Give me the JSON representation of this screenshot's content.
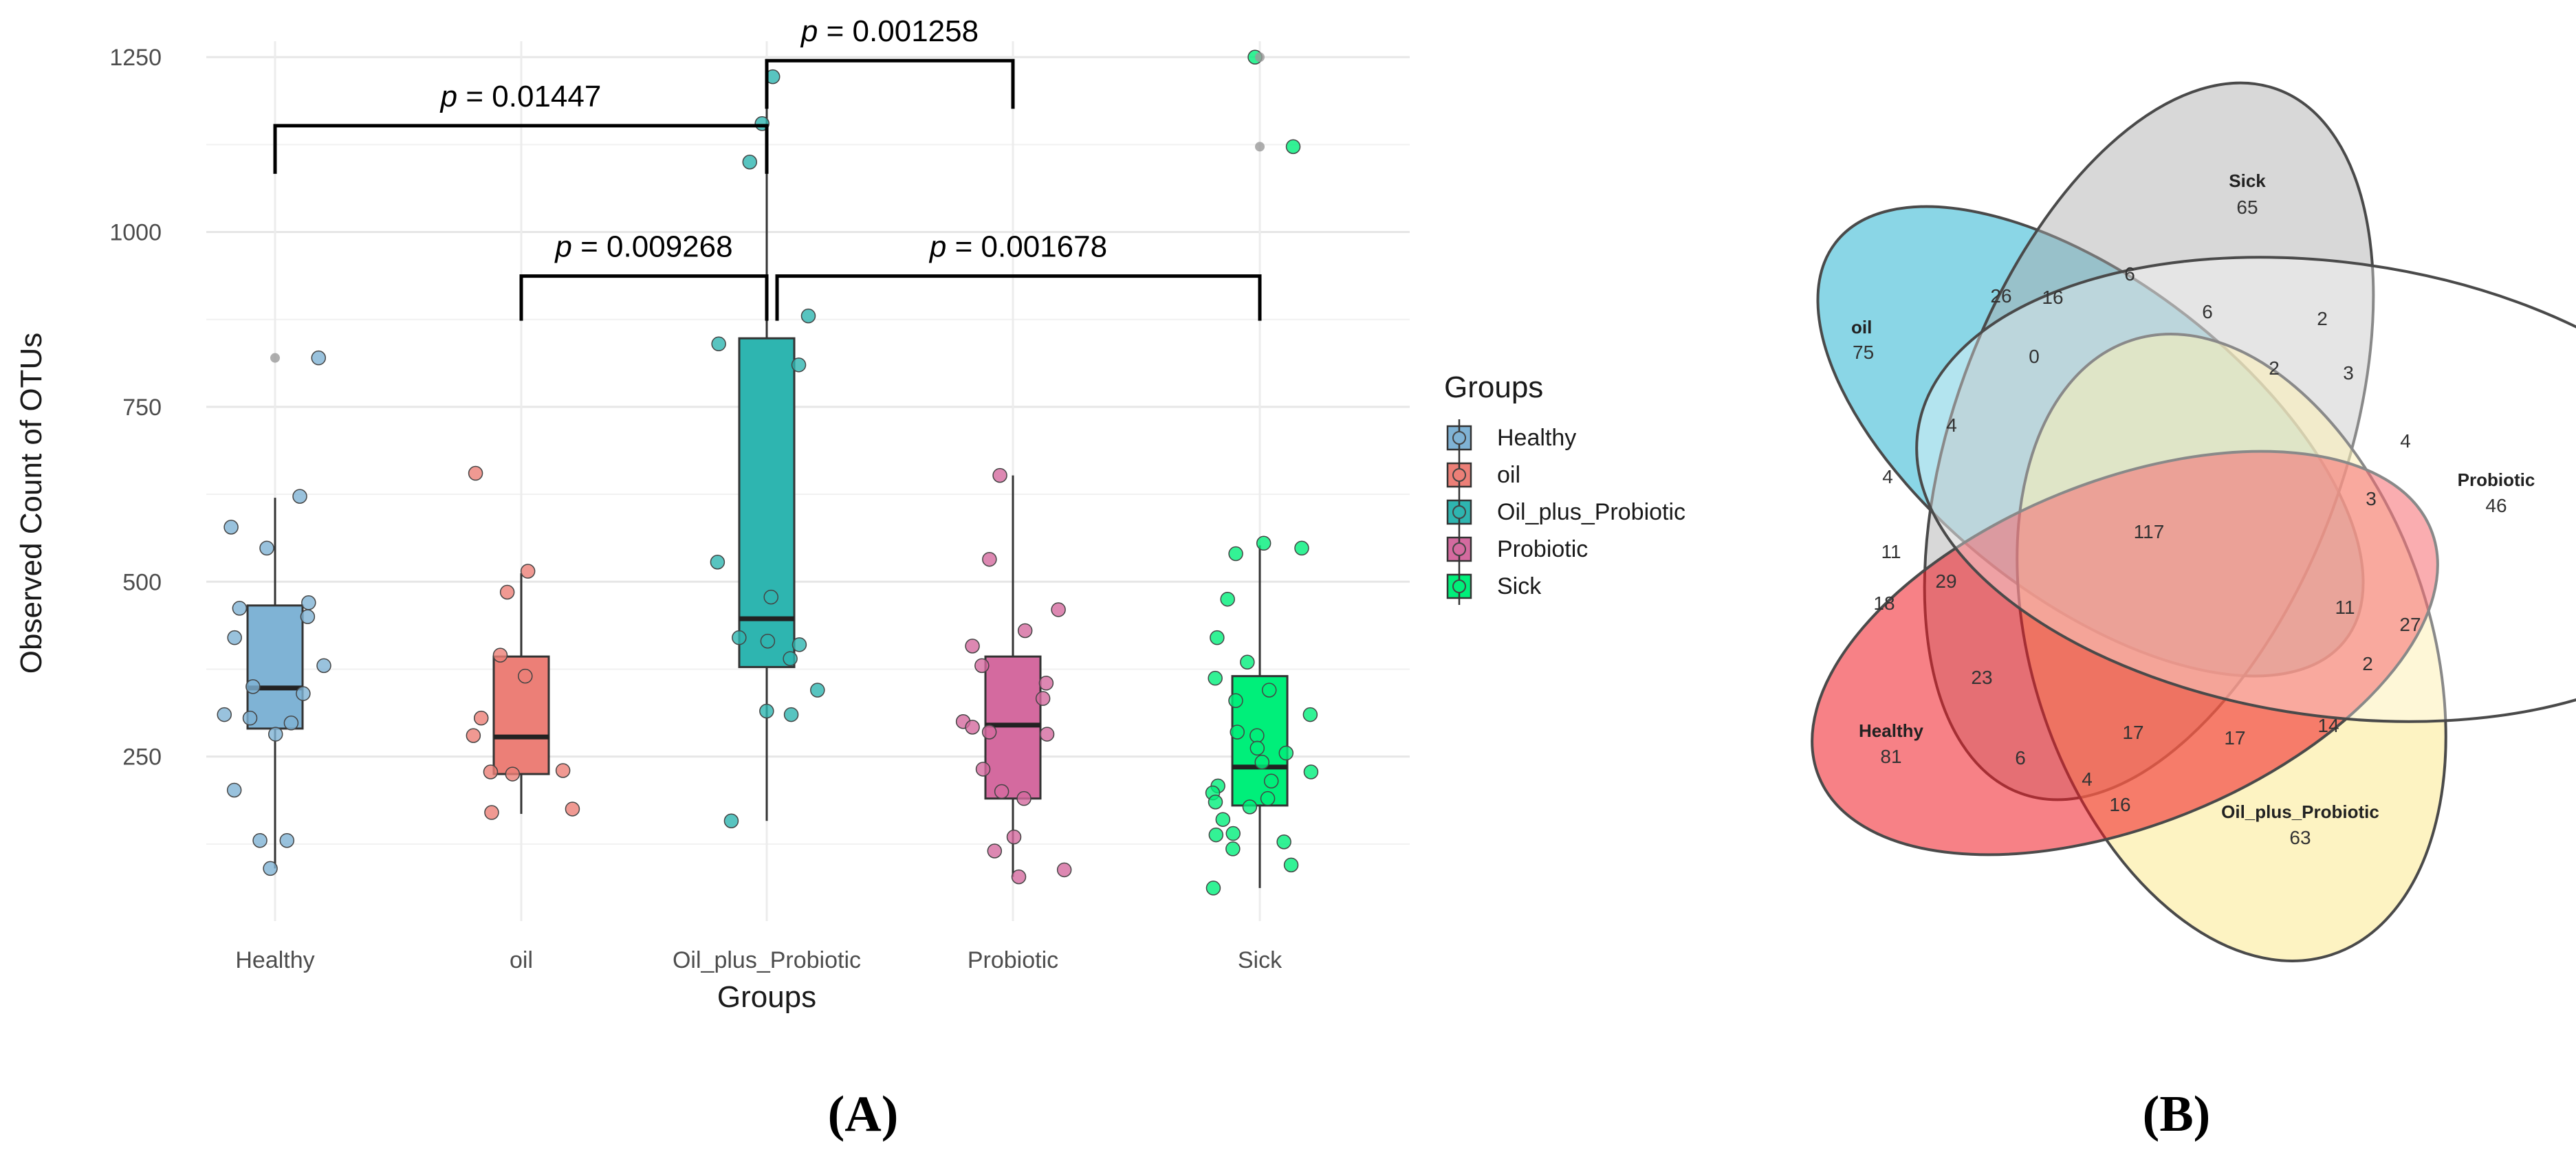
{
  "chart_data": [
    {
      "type": "box",
      "panel_label": "(A)",
      "title": "",
      "xlabel": "Groups",
      "ylabel": "Observed Count of OTUs",
      "ylim": [
        0,
        1300
      ],
      "yticks": [
        250,
        500,
        750,
        1000,
        1250
      ],
      "grid": true,
      "categories": [
        "Healthy",
        "oil",
        "Oil_plus_Probiotic",
        "Probiotic",
        "Sick"
      ],
      "colors": [
        "#7fb3d5",
        "#ec7f77",
        "#2eb5b0",
        "#d46a9f",
        "#00ef7a"
      ],
      "legend": {
        "title": "Groups",
        "position": "right",
        "entries": [
          "Healthy",
          "oil",
          "Oil_plus_Probiotic",
          "Probiotic",
          "Sick"
        ]
      },
      "boxes": [
        {
          "group": "Healthy",
          "whisker_low": 90,
          "q1": 290,
          "median": 348,
          "q3": 466,
          "whisker_high": 620
        },
        {
          "group": "oil",
          "whisker_low": 168,
          "q1": 225,
          "median": 278,
          "q3": 393,
          "whisker_high": 512
        },
        {
          "group": "Oil_plus_Probiotic",
          "whisker_low": 158,
          "q1": 378,
          "median": 447,
          "q3": 848,
          "whisker_high": 1225
        },
        {
          "group": "Probiotic",
          "whisker_low": 78,
          "q1": 190,
          "median": 295,
          "q3": 393,
          "whisker_high": 652
        },
        {
          "group": "Sick",
          "whisker_low": 62,
          "q1": 180,
          "median": 235,
          "q3": 365,
          "whisker_high": 552
        }
      ],
      "points": [
        {
          "group": "Healthy",
          "values": [
            820,
            622,
            578,
            548,
            470,
            462,
            450,
            420,
            380,
            350,
            340,
            310,
            305,
            298,
            282,
            202,
            130,
            130,
            90
          ]
        },
        {
          "group": "Healthy",
          "outliers": [
            820
          ]
        },
        {
          "group": "oil",
          "values": [
            655,
            515,
            485,
            395,
            365,
            305,
            280,
            230,
            228,
            225,
            175,
            170
          ]
        },
        {
          "group": "Oil_plus_Probiotic",
          "values": [
            1222,
            1155,
            1100,
            880,
            840,
            810,
            528,
            478,
            420,
            415,
            410,
            390,
            345,
            315,
            310,
            158
          ]
        },
        {
          "group": "Probiotic",
          "values": [
            652,
            532,
            460,
            430,
            408,
            380,
            355,
            333,
            300,
            292,
            285,
            282,
            232,
            200,
            190,
            135,
            115,
            88,
            78
          ]
        },
        {
          "group": "Sick",
          "values": [
            1250,
            1122,
            555,
            548,
            540,
            475,
            420,
            385,
            362,
            345,
            330,
            310,
            285,
            280,
            262,
            255,
            242,
            228,
            215,
            208,
            198,
            190,
            185,
            178,
            160,
            140,
            138,
            128,
            118,
            95,
            62
          ]
        },
        {
          "group": "Sick",
          "outliers": [
            1250,
            1122
          ]
        }
      ],
      "annotations": [
        {
          "text": "p = 0.01447",
          "from": "Healthy",
          "to": "Oil_plus_Probiotic",
          "y": 1152
        },
        {
          "text": "p = 0.001258",
          "from": "Oil_plus_Probiotic",
          "to": "Probiotic",
          "y": 1245
        },
        {
          "text": "p = 0.009268",
          "from": "oil",
          "to": "Oil_plus_Probiotic",
          "y": 937
        },
        {
          "text": "p = 0.001678",
          "from": "Oil_plus_Probiotic",
          "to": "Sick",
          "y": 937
        }
      ]
    },
    {
      "type": "venn",
      "panel_label": "(B)",
      "sets": [
        {
          "name": "oil",
          "unique": 75,
          "color": "#29b5d1"
        },
        {
          "name": "Sick",
          "unique": 65,
          "color": "#b0b0b0"
        },
        {
          "name": "Probiotic",
          "unique": 46,
          "color": "#ffffff"
        },
        {
          "name": "Oil_plus_Probiotic",
          "unique": 63,
          "color": "#fbe98f"
        },
        {
          "name": "Healthy",
          "unique": 81,
          "color": "#f01a22"
        }
      ],
      "intersections": [
        "26",
        "16",
        "6",
        "6",
        "2",
        "0",
        "2",
        "3",
        "4",
        "4",
        "4",
        "3",
        "117",
        "11",
        "29",
        "18",
        "11",
        "27",
        "2",
        "23",
        "14",
        "17",
        "17",
        "6",
        "4",
        "16"
      ]
    }
  ]
}
